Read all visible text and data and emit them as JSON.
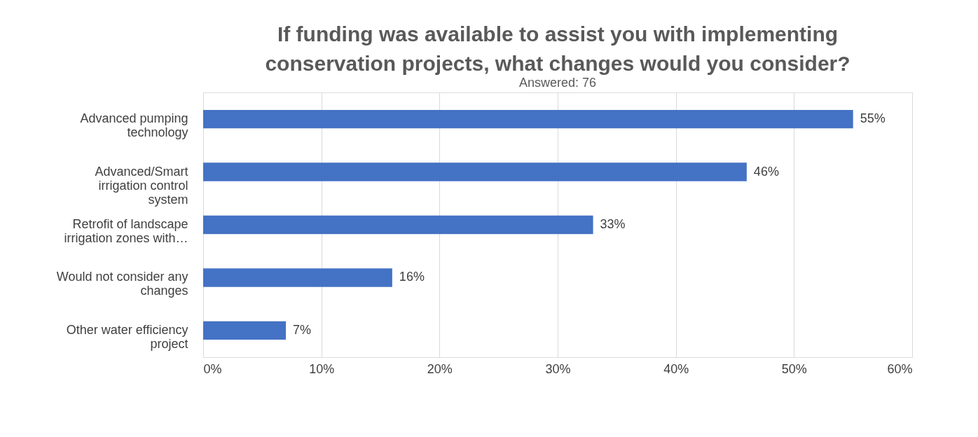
{
  "chart_data": {
    "type": "bar",
    "orientation": "horizontal",
    "title": "If funding was available to assist you with implementing conservation projects, what changes would you consider?",
    "subtitle": "Answered: 76",
    "categories": [
      "Advanced pumping technology",
      "Advanced/Smart irrigation control system",
      "Retrofit of landscape irrigation zones with…",
      "Would not consider any changes",
      "Other water efficiency project"
    ],
    "values": [
      55,
      46,
      33,
      16,
      7
    ],
    "value_labels": [
      "55%",
      "46%",
      "33%",
      "16%",
      "7%"
    ],
    "color": "#4472c4",
    "xlim": [
      0,
      60
    ],
    "xticks": [
      {
        "value": 0,
        "label": "0%"
      },
      {
        "value": 10,
        "label": "10%"
      },
      {
        "value": 20,
        "label": "20%"
      },
      {
        "value": 30,
        "label": "30%"
      },
      {
        "value": 40,
        "label": "40%"
      },
      {
        "value": 50,
        "label": "50%"
      },
      {
        "value": 60,
        "label": "60%"
      }
    ],
    "grid": "x"
  }
}
